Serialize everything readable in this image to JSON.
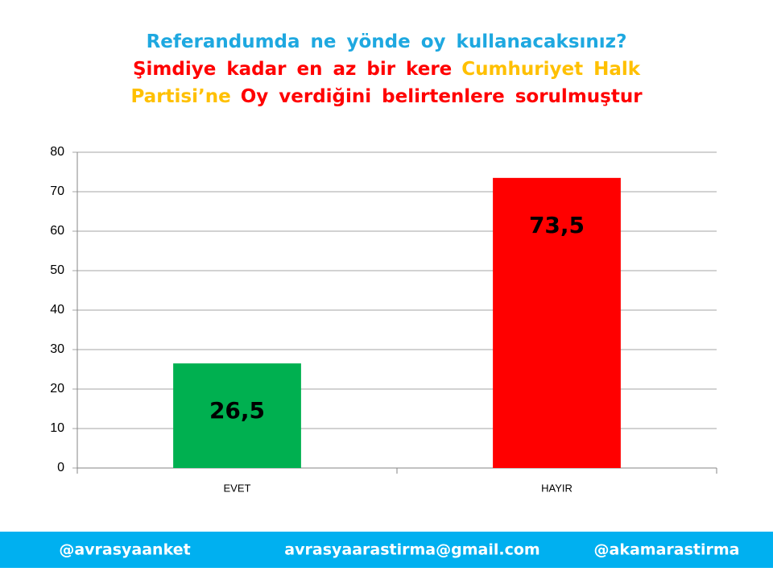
{
  "chart_data": {
    "type": "bar",
    "title_lines": [
      [
        {
          "text": "Referandumda ne yönde oy kullanacaksınız?",
          "color": "#1ea8e0"
        }
      ],
      [
        {
          "text": "Şimdiye kadar en az bir kere",
          "color": "#ff0000"
        },
        {
          "text": "Cumhuriyet Halk",
          "color": "#ffc000"
        }
      ],
      [
        {
          "text": "Partisi’ne",
          "color": "#ffc000"
        },
        {
          "text": "Oy verdiğini belirtenlere sorulmuştur",
          "color": "#ff0000"
        }
      ]
    ],
    "categories": [
      "EVET",
      "HAYIR"
    ],
    "values": [
      26.5,
      73.5
    ],
    "value_labels": [
      "26,5",
      "73,5"
    ],
    "colors": [
      "#00b050",
      "#ff0000"
    ],
    "ylim": [
      0,
      80
    ],
    "yticks": [
      0,
      10,
      20,
      30,
      40,
      50,
      60,
      70,
      80
    ],
    "grid": true
  },
  "footer": [
    "@avrasyaanket",
    "avrasyaarastirma@gmail.com",
    "@akamarastirma"
  ]
}
